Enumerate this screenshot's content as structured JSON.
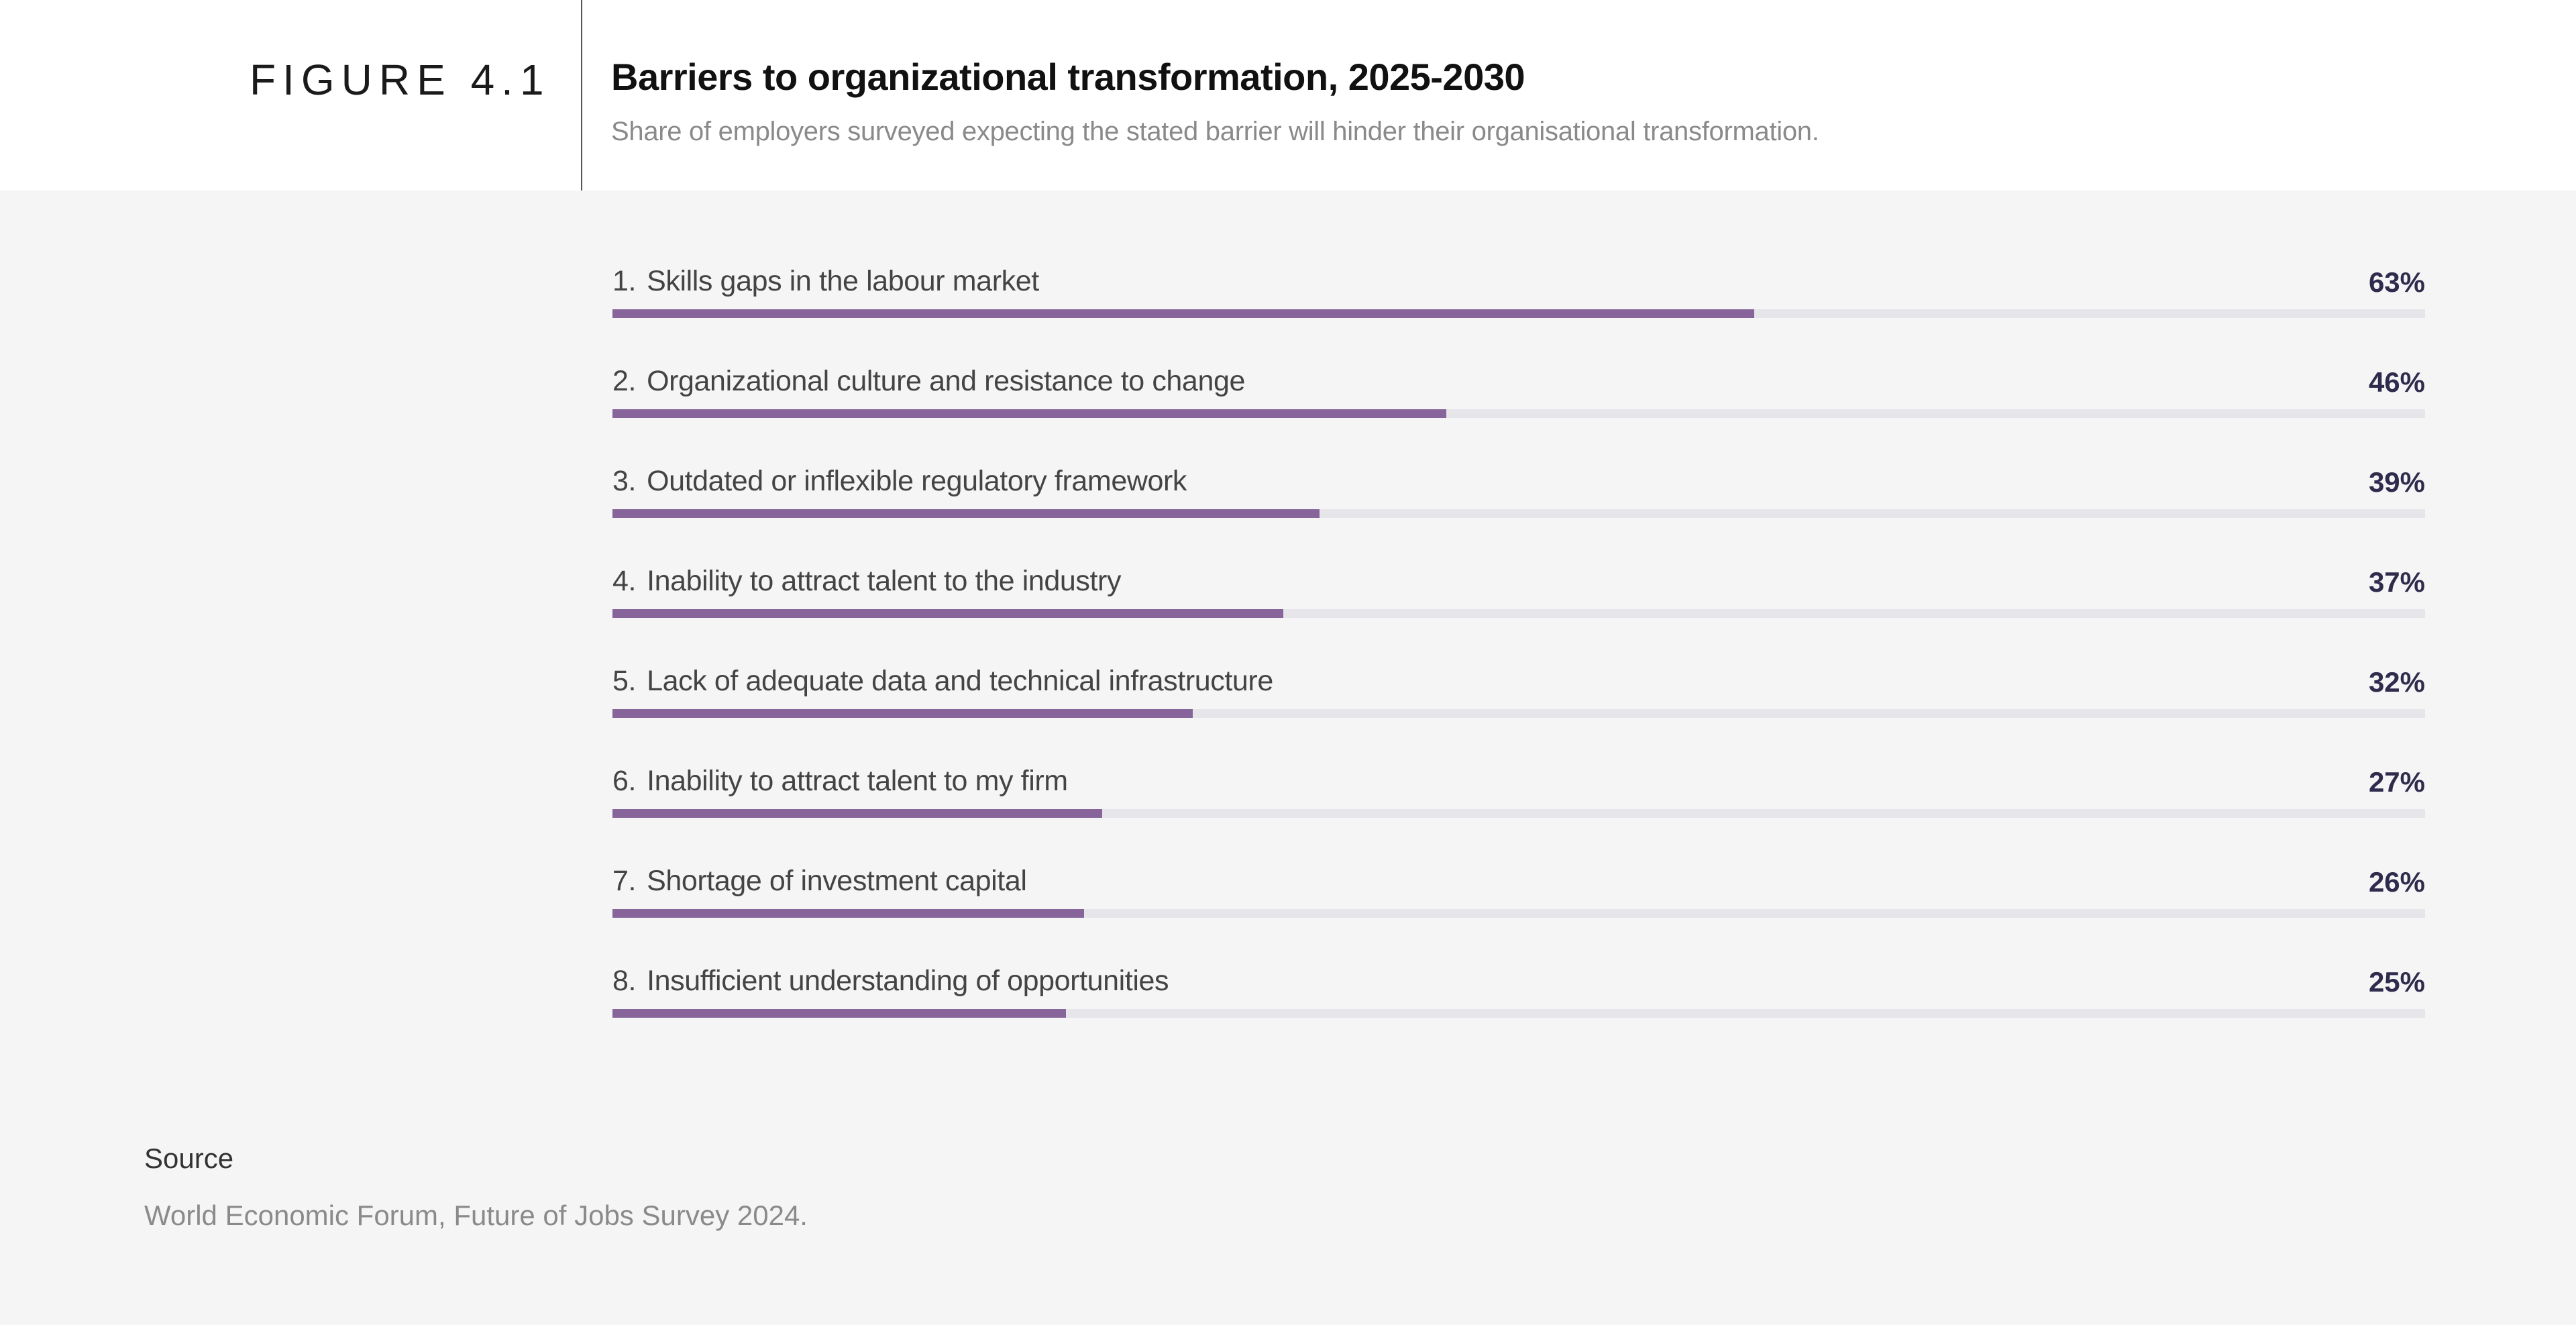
{
  "header": {
    "figure_label": "FIGURE 4.1",
    "title": "Barriers to organizational transformation, 2025-2030",
    "subtitle": "Share of employers surveyed expecting the stated barrier will hinder their organisational transformation."
  },
  "chart_data": {
    "type": "bar",
    "orientation": "horizontal",
    "title": "Barriers to organizational transformation, 2025-2030",
    "subtitle": "Share of employers surveyed expecting the stated barrier will hinder their organisational transformation.",
    "xlim": [
      0,
      100
    ],
    "grid": false,
    "bar_color": "#87659a",
    "track_color": "#e6e5ea",
    "categories": [
      {
        "rank": "1.",
        "label": "Skills gaps in the labour market",
        "value": 63,
        "value_label": "63%"
      },
      {
        "rank": "2.",
        "label": "Organizational culture and resistance to change",
        "value": 46,
        "value_label": "46%"
      },
      {
        "rank": "3.",
        "label": "Outdated or inflexible regulatory framework",
        "value": 39,
        "value_label": "39%"
      },
      {
        "rank": "4.",
        "label": "Inability to attract talent to the industry",
        "value": 37,
        "value_label": "37%"
      },
      {
        "rank": "5.",
        "label": "Lack of adequate data and technical infrastructure",
        "value": 32,
        "value_label": "32%"
      },
      {
        "rank": "6.",
        "label": "Inability to attract talent to my firm",
        "value": 27,
        "value_label": "27%"
      },
      {
        "rank": "7.",
        "label": "Shortage of investment capital",
        "value": 26,
        "value_label": "26%"
      },
      {
        "rank": "8.",
        "label": "Insufficient understanding of opportunities",
        "value": 25,
        "value_label": "25%"
      }
    ]
  },
  "source": {
    "label": "Source",
    "text": "World Economic Forum, Future of Jobs Survey 2024."
  }
}
